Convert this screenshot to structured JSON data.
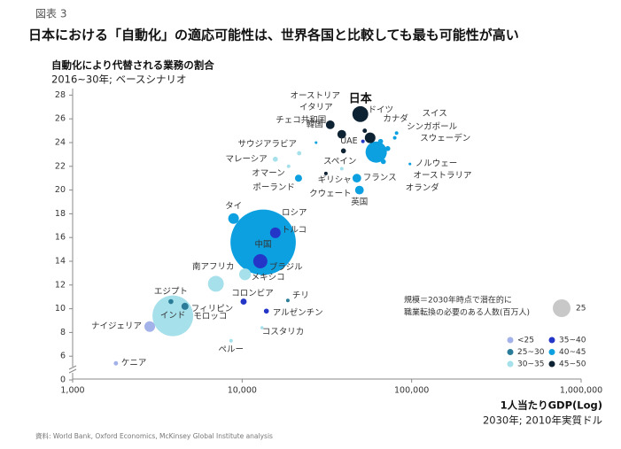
{
  "figure_label": "図表 3",
  "headline": "日本における「自動化」の適応可能性は、世界各国と比較しても最も可能性が高い",
  "source": "資料: World Bank, Oxford Economics, McKinsey Global Institute analysis",
  "chart_data": {
    "type": "bubble",
    "title": "自動化により代替される業務の割合",
    "subtitle": "2016~30年; ベースシナリオ",
    "x_label": "1人当たりGDP(Log)",
    "x_sublabel": "2030年; 2010年実質ドル",
    "x_log": true,
    "xlim": [
      1000,
      1000000
    ],
    "xticks": [
      {
        "value": 1000,
        "label": "1,000"
      },
      {
        "value": 10000,
        "label": "10,000"
      },
      {
        "value": 100000,
        "label": "100,000"
      },
      {
        "value": 1000000,
        "label": "1,000,000"
      }
    ],
    "ylim": [
      0,
      28
    ],
    "axis_break": [
      0,
      4
    ],
    "yticks": [
      0,
      6,
      8,
      10,
      12,
      14,
      16,
      18,
      20,
      22,
      24,
      26,
      28
    ],
    "size_legend": {
      "lines": [
        "規模＝2030年時点で潜在的に",
        "職業転換の必要のある人数(百万人)"
      ],
      "value": 25,
      "label": "25"
    },
    "highlight": "日本",
    "series": [
      {
        "name": "<25",
        "color": "#a3b3ea",
        "labels": [
          "ナイジェリア",
          "ケニア"
        ],
        "x": [
          2850,
          1800
        ],
        "values": [
          8.5,
          5.4
        ],
        "sizes": [
          9,
          1.5
        ]
      },
      {
        "name": "25~30",
        "color": "#2a7c99",
        "labels": [
          "エジプト",
          "フィリピン",
          "チリ"
        ],
        "x": [
          3800,
          4600,
          18600
        ],
        "values": [
          10.6,
          10.2,
          10.7
        ],
        "sizes": [
          2,
          4,
          1
        ]
      },
      {
        "name": "30~35",
        "color": "#a6e0ea",
        "labels": [
          "インド",
          "南アフリカ",
          "メキシコ",
          "モロッコ",
          "ペルー",
          "マレーシア",
          "サウジアラビア",
          "ギリシャ",
          "オマーン",
          "コスタリカ"
        ],
        "x": [
          3900,
          7000,
          10400,
          4800,
          8600,
          15700,
          21700,
          38700,
          18800,
          13100
        ],
        "values": [
          9.4,
          12.1,
          12.9,
          9.4,
          7.3,
          22.6,
          23.1,
          21.8,
          22.0,
          8.4
        ],
        "sizes": [
          132,
          20,
          11,
          1,
          1,
          2,
          1.5,
          1,
          1,
          0.8
        ]
      },
      {
        "name": "35~40",
        "color": "#2436c8",
        "labels": [
          "トルコ",
          "ブラジル",
          "アルゼンチン",
          "コロンビア",
          "UAE"
        ],
        "x": [
          15700,
          12800,
          13900,
          10200,
          51600
        ],
        "values": [
          16.4,
          14.0,
          9.8,
          10.6,
          24.1
        ],
        "sizes": [
          9,
          16,
          2,
          3,
          1
        ]
      },
      {
        "name": "40~45",
        "color": "#0ca0e0",
        "labels": [
          null,
          "中国",
          "ロシア",
          "タイ",
          "ポーランド",
          "フランス",
          "英国",
          "カナダ",
          "スイス",
          "シンガポール",
          "スウェーデン",
          "ノルウェー",
          "オーストラリア",
          "オランダ",
          "チェコ共和国"
        ],
        "x": [
          61800,
          13300,
          14300,
          8900,
          21500,
          47500,
          49200,
          65600,
          81500,
          79500,
          72300,
          97700,
          63200,
          68100,
          27300
        ],
        "values": [
          23.2,
          15.6,
          17.7,
          17.6,
          21.0,
          21.0,
          20.0,
          24.1,
          24.8,
          24.4,
          23.5,
          22.2,
          22.7,
          22.4,
          24.0
        ],
        "sizes": [
          36,
          340,
          16,
          9,
          4,
          6,
          6,
          2,
          1,
          1,
          2,
          0.6,
          2,
          2,
          0.6
        ]
      },
      {
        "name": "45~50",
        "color": "#0d2233",
        "labels": [
          "日本",
          "韓国",
          "イタリア",
          "スペイン",
          "クウェート",
          "ドイツ",
          "オーストリア"
        ],
        "x": [
          49800,
          33100,
          38700,
          39600,
          31200,
          56900,
          52900
        ],
        "values": [
          26.4,
          25.5,
          24.7,
          23.3,
          21.4,
          24.4,
          25.0
        ],
        "sizes": [
          20,
          6,
          6,
          2,
          1,
          9,
          1.5
        ]
      }
    ]
  }
}
